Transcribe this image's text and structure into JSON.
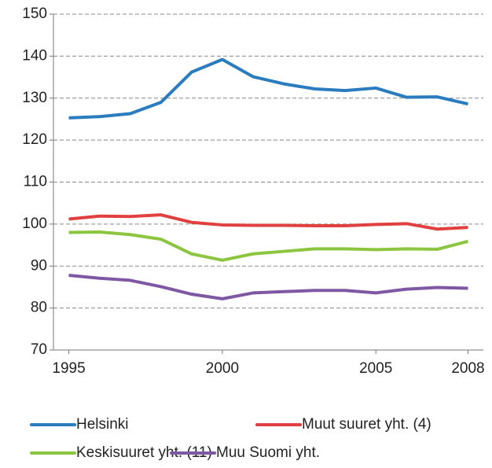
{
  "chart_data": {
    "type": "line",
    "x": [
      1995,
      1996,
      1997,
      1998,
      1999,
      2000,
      2001,
      2002,
      2003,
      2004,
      2005,
      2006,
      2007,
      2008
    ],
    "xlim": [
      1994.5,
      2008.5
    ],
    "xticks": [
      1995,
      2000,
      2005,
      2008
    ],
    "ylim": [
      70,
      150
    ],
    "yticks": [
      70,
      80,
      90,
      100,
      110,
      120,
      130,
      140,
      150
    ],
    "grid": true,
    "series": [
      {
        "name": "Helsinki",
        "color": "#2b7bbf",
        "values": [
          125.3,
          125.6,
          126.3,
          129,
          136.2,
          139.2,
          135.1,
          133.4,
          132.2,
          131.8,
          132.4,
          130.2,
          130.3,
          128.6
        ]
      },
      {
        "name": "Muut suuret yht. (4)",
        "color": "#e0403f",
        "values": [
          101.2,
          101.9,
          101.8,
          102.2,
          100.4,
          99.8,
          99.7,
          99.7,
          99.6,
          99.6,
          99.9,
          100.1,
          98.8,
          99.2
        ]
      },
      {
        "name": "Keskisuuret yht. (11)",
        "color": "#8cc540",
        "values": [
          98,
          98.1,
          97.5,
          96.4,
          92.9,
          91.4,
          92.9,
          93.5,
          94.1,
          94.1,
          93.9,
          94.1,
          94,
          95.9
        ]
      },
      {
        "name": "Muu Suomi yht.",
        "color": "#7e58a2",
        "values": [
          87.8,
          87.1,
          86.6,
          85.1,
          83.3,
          82.2,
          83.6,
          83.9,
          84.2,
          84.2,
          83.6,
          84.5,
          84.9,
          84.7
        ]
      }
    ]
  }
}
